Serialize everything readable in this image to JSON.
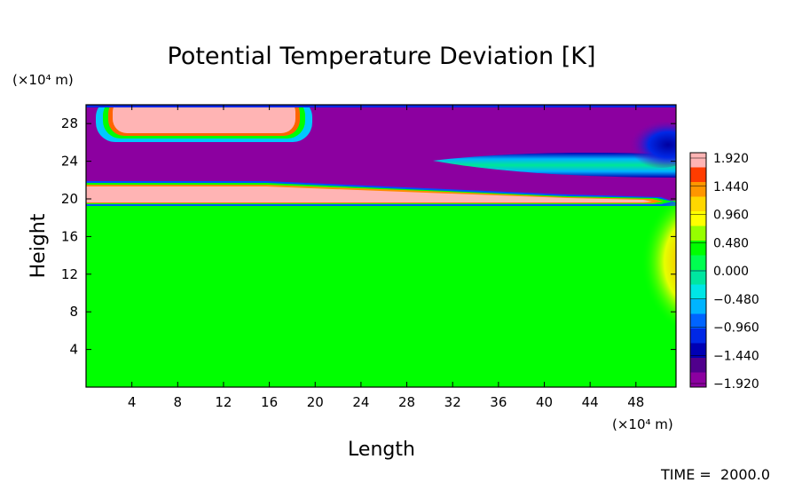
{
  "chart_data": {
    "type": "heatmap",
    "title": "Potential Temperature Deviation [K]",
    "xlabel": "Length",
    "ylabel": "Height",
    "x_unit": "(×10⁴ m)",
    "y_unit": "(×10⁴ m)",
    "x_ticks": [
      4,
      8,
      12,
      16,
      20,
      24,
      28,
      32,
      36,
      40,
      44,
      48
    ],
    "y_ticks": [
      4,
      8,
      12,
      16,
      20,
      24,
      28
    ],
    "xlim": [
      0,
      51.5
    ],
    "ylim": [
      0,
      30
    ],
    "colorbar": {
      "levels": [
        1.92,
        1.44,
        0.96,
        0.48,
        0.0,
        -0.48,
        -0.96,
        -1.44,
        -1.92
      ],
      "labels": [
        "1.920",
        "1.440",
        "0.960",
        "0.480",
        "0.000",
        "−0.480",
        "−0.960",
        "−1.440",
        "−1.920"
      ],
      "colors_top_to_bottom": [
        "#ffb4b4",
        "#ff3c00",
        "#ff9600",
        "#ffd700",
        "#ffff00",
        "#96ff00",
        "#00ff00",
        "#00ff50",
        "#00e6a0",
        "#00e6e6",
        "#00b4ff",
        "#0064ff",
        "#0028e6",
        "#0000b4",
        "#50008c",
        "#8c00a0"
      ]
    },
    "regions": [
      {
        "name": "lower layer",
        "x": [
          0,
          51.5
        ],
        "y": [
          0,
          19.6
        ],
        "value": 0.0
      },
      {
        "name": "warm band",
        "x": [
          0,
          50
        ],
        "y": [
          19.6,
          21.6
        ],
        "value": 1.92
      },
      {
        "name": "upper layer",
        "x": [
          0,
          51.5
        ],
        "y": [
          21.6,
          30
        ],
        "value": -1.92
      },
      {
        "name": "warm blob upper-left",
        "x": [
          3,
          18.5
        ],
        "y": [
          26.5,
          30
        ],
        "value": 1.92
      },
      {
        "name": "cool streak",
        "x": [
          30,
          51.5
        ],
        "y": [
          22.3,
          24.3
        ],
        "value": -0.5
      },
      {
        "name": "deep cold core",
        "x": [
          47,
          51.5
        ],
        "y": [
          24,
          27
        ],
        "value": -1.44
      },
      {
        "name": "warm anomaly right edge",
        "x": [
          47,
          51.5
        ],
        "y": [
          9,
          18
        ],
        "value": 0.96
      }
    ]
  },
  "footer": {
    "time_label": "TIME =  2000.0"
  }
}
